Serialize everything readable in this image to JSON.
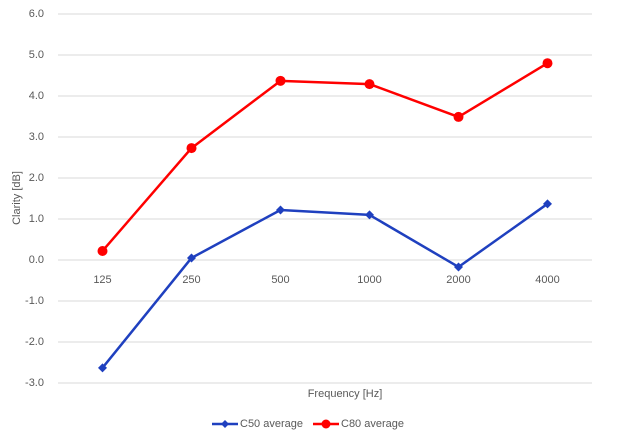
{
  "chart_data": {
    "type": "line",
    "x_label": "Frequency [Hz]",
    "y_label": "Clarity [dB]",
    "categories": [
      "125",
      "250",
      "500",
      "1000",
      "2000",
      "4000"
    ],
    "series": [
      {
        "name": "C50 average",
        "color": "#1f40bf",
        "marker": "diamond",
        "values": [
          -2.63,
          0.05,
          1.22,
          1.1,
          -0.17,
          1.37
        ]
      },
      {
        "name": "C80 average",
        "color": "#ff0000",
        "marker": "circle",
        "values": [
          0.22,
          2.73,
          4.37,
          4.29,
          3.49,
          4.8
        ]
      }
    ],
    "ylim": [
      -3,
      6
    ],
    "yticks": [
      {
        "value": -3,
        "label": "-3.0"
      },
      {
        "value": -2,
        "label": "-2.0"
      },
      {
        "value": -1,
        "label": "-1.0"
      },
      {
        "value": 0,
        "label": "0.0"
      },
      {
        "value": 1,
        "label": "1.0"
      },
      {
        "value": 2,
        "label": "2.0"
      },
      {
        "value": 3,
        "label": "3.0"
      },
      {
        "value": 4,
        "label": "4.0"
      },
      {
        "value": 5,
        "label": "5.0"
      },
      {
        "value": 6,
        "label": "6.0"
      }
    ],
    "grid": true,
    "legend": "bottom"
  }
}
